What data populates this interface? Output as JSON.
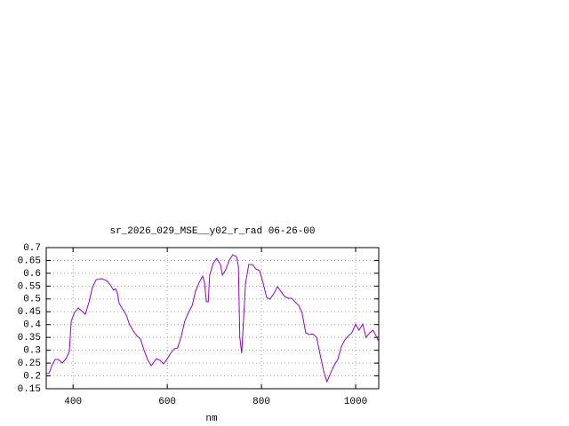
{
  "chart_data": {
    "type": "line",
    "title": "sr_2026_029_MSE__y02_r_rad 06-26-00",
    "x_label": "nm",
    "xlim": [
      343,
      1049
    ],
    "ylim": [
      0.15,
      0.7
    ],
    "xticks": [
      400,
      600,
      800,
      1000
    ],
    "yticks": [
      0.15,
      0.2,
      0.25,
      0.3,
      0.35,
      0.4,
      0.45,
      0.5,
      0.55,
      0.6,
      0.65,
      0.7
    ],
    "grid": true,
    "series": [
      {
        "color": "#9400d3",
        "x": [
          343,
          349,
          355,
          362,
          369,
          377,
          385,
          392,
          396,
          403,
          411,
          418,
          426,
          434,
          441,
          449,
          460,
          471,
          479,
          486,
          490,
          494,
          498,
          505,
          513,
          520,
          528,
          535,
          543,
          551,
          558,
          566,
          569,
          577,
          585,
          592,
          600,
          607,
          615,
          622,
          630,
          637,
          645,
          653,
          660,
          668,
          675,
          679,
          683,
          687,
          690,
          698,
          705,
          713,
          717,
          724,
          732,
          739,
          747,
          751,
          754,
          758,
          762,
          766,
          773,
          781,
          788,
          796,
          803,
          811,
          818,
          826,
          834,
          841,
          849,
          856,
          864,
          871,
          879,
          886,
          894,
          902,
          909,
          917,
          924,
          932,
          939,
          947,
          954,
          962,
          970,
          977,
          985,
          992,
          1000,
          1007,
          1015,
          1022,
          1030,
          1037,
          1045,
          1049
        ],
        "values": [
          0.209,
          0.21,
          0.24,
          0.264,
          0.264,
          0.25,
          0.267,
          0.295,
          0.413,
          0.447,
          0.465,
          0.454,
          0.44,
          0.489,
          0.544,
          0.575,
          0.579,
          0.572,
          0.555,
          0.534,
          0.54,
          0.523,
          0.482,
          0.461,
          0.437,
          0.4,
          0.375,
          0.357,
          0.344,
          0.299,
          0.264,
          0.24,
          0.247,
          0.267,
          0.26,
          0.247,
          0.267,
          0.288,
          0.306,
          0.309,
          0.357,
          0.413,
          0.447,
          0.475,
          0.53,
          0.565,
          0.589,
          0.565,
          0.489,
          0.489,
          0.593,
          0.641,
          0.658,
          0.634,
          0.593,
          0.613,
          0.652,
          0.672,
          0.665,
          0.627,
          0.35,
          0.288,
          0.42,
          0.558,
          0.634,
          0.634,
          0.617,
          0.61,
          0.565,
          0.506,
          0.499,
          0.52,
          0.548,
          0.53,
          0.51,
          0.503,
          0.503,
          0.489,
          0.475,
          0.447,
          0.368,
          0.361,
          0.364,
          0.35,
          0.288,
          0.219,
          0.177,
          0.212,
          0.24,
          0.264,
          0.316,
          0.34,
          0.357,
          0.368,
          0.402,
          0.378,
          0.402,
          0.35,
          0.368,
          0.378,
          0.35,
          0.333
        ]
      }
    ]
  }
}
